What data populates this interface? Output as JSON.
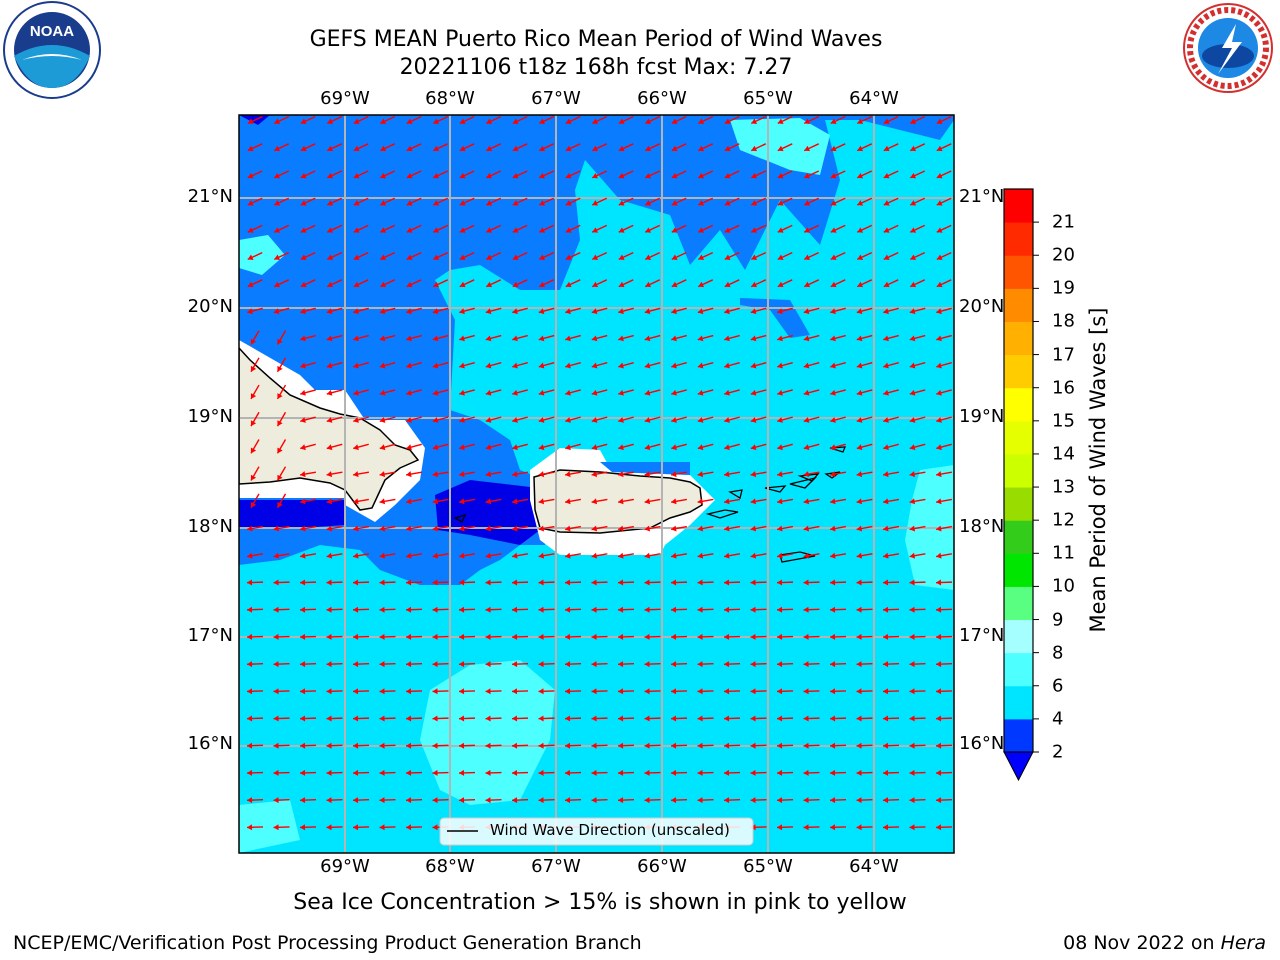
{
  "header": {
    "title_line1": "GEFS MEAN Puerto Rico Mean Period of Wind Waves",
    "title_line2": "20221106 t18z 168h fcst   Max: 7.27"
  },
  "logos": {
    "left": {
      "text": "NOAA",
      "ring_text": "NATIONAL OCEANIC AND ATMOSPHERIC ADMINISTRATION · U.S. DEPARTMENT OF COMMERCE"
    },
    "right": {
      "ring_text": "NATIONAL WEATHER SERVICE"
    }
  },
  "map": {
    "lon_ticks": [
      "69°W",
      "68°W",
      "67°W",
      "66°W",
      "65°W",
      "64°W"
    ],
    "lat_ticks": [
      "21°N",
      "20°N",
      "19°N",
      "18°N",
      "17°N",
      "16°N"
    ],
    "legend_label": "Wind Wave Direction (unscaled)",
    "arrow_color": "#ff0000",
    "land_color": "#eeecdc"
  },
  "colorbar": {
    "label": "Mean Period of Wind Waves [s]",
    "ticks": [
      "2",
      "4",
      "6",
      "8",
      "9",
      "10",
      "11",
      "12",
      "13",
      "14",
      "15",
      "16",
      "17",
      "18",
      "19",
      "20",
      "21"
    ],
    "colors": [
      "#0038ff",
      "#00e5ff",
      "#4dffff",
      "#a6ffff",
      "#59ff80",
      "#00e600",
      "#33cc1a",
      "#99dd00",
      "#ccff00",
      "#e6ff00",
      "#ffff00",
      "#ffcc00",
      "#ffb000",
      "#ff8c00",
      "#ff5500",
      "#ff2a00",
      "#ff0000"
    ],
    "under_color": "#0000ff"
  },
  "notes": {
    "sea_ice": "Sea Ice Concentration > 15% is shown in pink to yellow"
  },
  "footer": {
    "left": "NCEP/EMC/Verification Post Processing Product Generation Branch",
    "right_date": "08 Nov 2022 on ",
    "right_machine": "Hera"
  }
}
